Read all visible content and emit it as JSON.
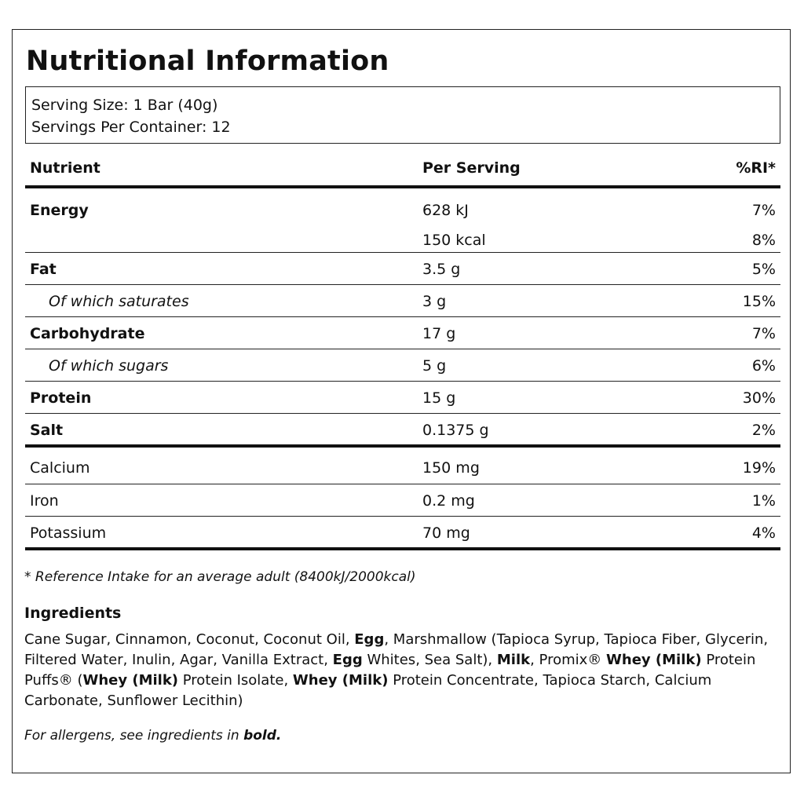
{
  "label": {
    "title": "Nutritional Information",
    "serving_size": "Serving Size: 1 Bar (40g)",
    "servings_per_container": "Servings Per Container: 12"
  },
  "table": {
    "headers": {
      "nutrient": "Nutrient",
      "per_serving": "Per Serving",
      "ri": "%RI*"
    },
    "rows": [
      {
        "name": "Energy",
        "value": "628 kJ",
        "ri": "7%"
      },
      {
        "name": "",
        "value": "150 kcal",
        "ri": "8%"
      },
      {
        "name": "Fat",
        "value": "3.5 g",
        "ri": "5%"
      },
      {
        "name": "Of which saturates",
        "value": "3 g",
        "ri": "15%"
      },
      {
        "name": "Carbohydrate",
        "value": "17 g",
        "ri": "7%"
      },
      {
        "name": "Of which sugars",
        "value": "5 g",
        "ri": "6%"
      },
      {
        "name": "Protein",
        "value": "15 g",
        "ri": "30%"
      },
      {
        "name": "Salt",
        "value": "0.1375 g",
        "ri": "2%"
      },
      {
        "name": "Calcium",
        "value": "150 mg",
        "ri": "19%"
      },
      {
        "name": "Iron",
        "value": "0.2 mg",
        "ri": "1%"
      },
      {
        "name": "Potassium",
        "value": "70 mg",
        "ri": "4%"
      }
    ]
  },
  "footnote": "* Reference Intake for an average adult (8400kJ/2000kcal)",
  "ingredients": {
    "title": "Ingredients",
    "parts": [
      {
        "text": "Cane Sugar, Cinnamon, Coconut, Coconut Oil, ",
        "bold": false
      },
      {
        "text": "Egg",
        "bold": true
      },
      {
        "text": ", Marshmallow (Tapioca Syrup, Tapioca Fiber, Glycerin, Filtered Water, Inulin, Agar, Vanilla Extract, ",
        "bold": false
      },
      {
        "text": "Egg",
        "bold": true
      },
      {
        "text": " Whites, Sea Salt), ",
        "bold": false
      },
      {
        "text": "Milk",
        "bold": true
      },
      {
        "text": ", Promix® ",
        "bold": false
      },
      {
        "text": "Whey (Milk)",
        "bold": true
      },
      {
        "text": " Protein Puffs® (",
        "bold": false
      },
      {
        "text": "Whey (Milk)",
        "bold": true
      },
      {
        "text": " Protein Isolate, ",
        "bold": false
      },
      {
        "text": "Whey (Milk)",
        "bold": true
      },
      {
        "text": " Protein Concentrate, Tapioca Starch, Calcium Carbonate, Sunflower Lecithin)",
        "bold": false
      }
    ],
    "allergen_prefix": "For allergens, see ingredients in ",
    "allergen_bold": "bold."
  }
}
